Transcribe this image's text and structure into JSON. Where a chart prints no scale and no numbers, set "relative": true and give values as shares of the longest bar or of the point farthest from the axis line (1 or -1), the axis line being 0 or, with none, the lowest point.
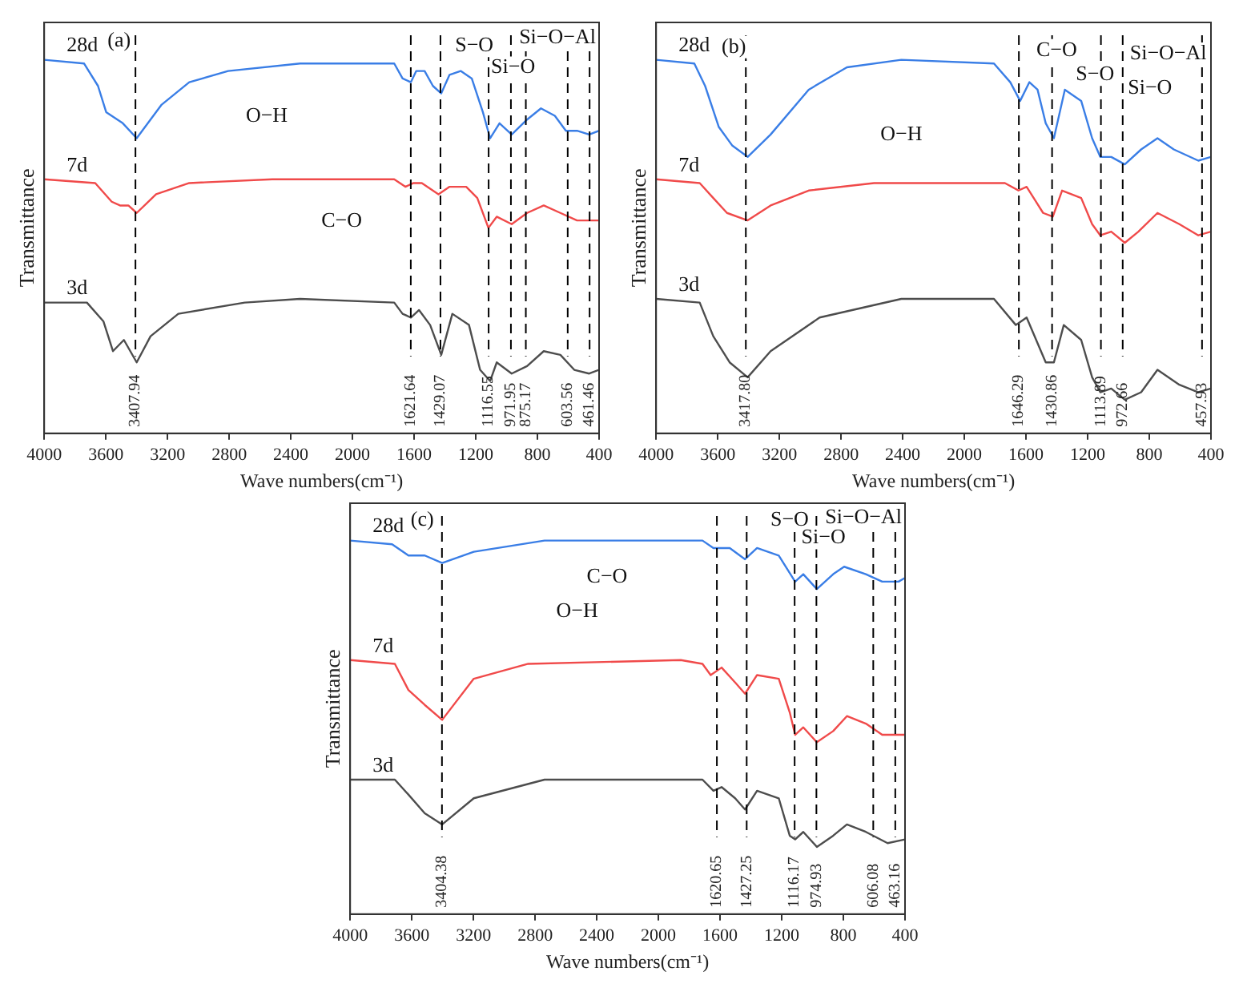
{
  "chart_data": [
    {
      "type": "line",
      "relative": true,
      "xlabel": "Wave numbers(cm⁻¹)",
      "ylabel": "Transmittance",
      "xlim": [
        4000,
        400
      ],
      "xticks": [
        4000,
        3600,
        3200,
        2800,
        2400,
        2000,
        1600,
        1200,
        800,
        400
      ],
      "series": [
        {
          "name": "28d",
          "color": "#3a7ee6",
          "x": [
            4000,
            3741,
            3651,
            3598,
            3490,
            3400,
            3238,
            3059,
            2807,
            2340,
            1729,
            1675,
            1621,
            1586,
            1532,
            1478,
            1424,
            1370,
            1298,
            1226,
            1154,
            1107,
            1046,
            967,
            867,
            777,
            687,
            615,
            543,
            464,
            400
          ],
          "values": [
            1.0,
            0.99,
            0.93,
            0.86,
            0.83,
            0.79,
            0.88,
            0.94,
            0.97,
            0.99,
            0.99,
            0.95,
            0.94,
            0.97,
            0.97,
            0.93,
            0.91,
            0.96,
            0.97,
            0.95,
            0.86,
            0.79,
            0.83,
            0.8,
            0.84,
            0.87,
            0.85,
            0.81,
            0.81,
            0.8,
            0.81
          ]
        },
        {
          "name": "7d",
          "color": "#f04a4a",
          "x": [
            4000,
            3669,
            3562,
            3508,
            3454,
            3400,
            3274,
            3059,
            2520,
            1729,
            1657,
            1604,
            1550,
            1442,
            1370,
            1262,
            1190,
            1118,
            1064,
            967,
            867,
            759,
            651,
            543,
            400
          ],
          "values": [
            0.68,
            0.67,
            0.62,
            0.61,
            0.61,
            0.59,
            0.64,
            0.67,
            0.68,
            0.68,
            0.66,
            0.67,
            0.67,
            0.64,
            0.66,
            0.66,
            0.63,
            0.55,
            0.58,
            0.56,
            0.59,
            0.61,
            0.59,
            0.57,
            0.57
          ]
        },
        {
          "name": "3d",
          "color": "#4d4d4d",
          "x": [
            4000,
            3723,
            3616,
            3554,
            3483,
            3400,
            3310,
            3130,
            2699,
            2340,
            1729,
            1675,
            1621,
            1568,
            1496,
            1424,
            1352,
            1244,
            1172,
            1107,
            1064,
            967,
            867,
            759,
            651,
            561,
            464,
            400
          ],
          "values": [
            0.35,
            0.35,
            0.3,
            0.22,
            0.25,
            0.19,
            0.26,
            0.32,
            0.35,
            0.36,
            0.35,
            0.32,
            0.31,
            0.33,
            0.29,
            0.21,
            0.32,
            0.29,
            0.17,
            0.14,
            0.19,
            0.16,
            0.18,
            0.22,
            0.21,
            0.17,
            0.16,
            0.17
          ]
        }
      ],
      "ref_lines": [
        {
          "axis": "x",
          "value": 3407.94,
          "label": "3407.94",
          "color": "#000000",
          "line_style": "dashed"
        },
        {
          "axis": "x",
          "value": 1621.64,
          "label": "1621.64",
          "color": "#000000",
          "line_style": "dashed"
        },
        {
          "axis": "x",
          "value": 1429.07,
          "label": "1429.07",
          "color": "#000000",
          "line_style": "dashed"
        },
        {
          "axis": "x",
          "value": 1116.55,
          "label": "1116.55",
          "color": "#000000",
          "line_style": "dashed"
        },
        {
          "axis": "x",
          "value": 971.95,
          "label": "971.95",
          "color": "#000000",
          "line_style": "dashed"
        },
        {
          "axis": "x",
          "value": 875.17,
          "label": "875.17",
          "color": "#000000",
          "line_style": "dashed"
        },
        {
          "axis": "x",
          "value": 603.56,
          "label": "603.56",
          "color": "#000000",
          "line_style": "dashed"
        },
        {
          "axis": "x",
          "value": 461.46,
          "label": "461.46",
          "color": "#000000",
          "line_style": "dashed"
        }
      ],
      "annotations": [
        "(a)",
        "O−H",
        "C−O",
        "S−O",
        "Si−O",
        "Si−O−Al"
      ]
    },
    {
      "type": "line",
      "relative": true,
      "xlabel": "Wave numbers(cm⁻¹)",
      "ylabel": "Transmittance",
      "xlim": [
        4000,
        400
      ],
      "xticks": [
        4000,
        3600,
        3200,
        2800,
        2400,
        2000,
        1600,
        1200,
        800,
        400
      ],
      "series": [
        {
          "name": "28d",
          "color": "#3a7ee6",
          "x": [
            4000,
            3752,
            3682,
            3593,
            3505,
            3406,
            3257,
            3010,
            2762,
            2409,
            1808,
            1702,
            1638,
            1578,
            1525,
            1472,
            1419,
            1348,
            1242,
            1171,
            1118,
            1047,
            959,
            853,
            747,
            641,
            482,
            400
          ],
          "values": [
            1.0,
            0.99,
            0.93,
            0.82,
            0.77,
            0.74,
            0.8,
            0.92,
            0.98,
            1.0,
            0.99,
            0.94,
            0.89,
            0.94,
            0.92,
            0.83,
            0.79,
            0.92,
            0.89,
            0.79,
            0.74,
            0.74,
            0.72,
            0.76,
            0.79,
            0.76,
            0.73,
            0.74
          ]
        },
        {
          "name": "7d",
          "color": "#f04a4a",
          "x": [
            4000,
            3717,
            3629,
            3540,
            3406,
            3257,
            3010,
            2586,
            1737,
            1649,
            1596,
            1489,
            1426,
            1366,
            1242,
            1171,
            1118,
            1047,
            959,
            871,
            747,
            605,
            482,
            400
          ],
          "values": [
            0.68,
            0.67,
            0.63,
            0.59,
            0.57,
            0.61,
            0.65,
            0.67,
            0.67,
            0.65,
            0.66,
            0.59,
            0.58,
            0.65,
            0.63,
            0.56,
            0.53,
            0.54,
            0.51,
            0.54,
            0.59,
            0.56,
            0.53,
            0.54
          ]
        },
        {
          "name": "3d",
          "color": "#4d4d4d",
          "x": [
            4000,
            3717,
            3629,
            3523,
            3406,
            3257,
            2939,
            2409,
            1808,
            1666,
            1596,
            1472,
            1419,
            1355,
            1242,
            1171,
            1118,
            1047,
            959,
            853,
            747,
            605,
            482,
            400
          ],
          "values": [
            0.36,
            0.35,
            0.26,
            0.19,
            0.15,
            0.22,
            0.31,
            0.36,
            0.36,
            0.29,
            0.31,
            0.19,
            0.19,
            0.29,
            0.25,
            0.15,
            0.11,
            0.12,
            0.09,
            0.11,
            0.17,
            0.13,
            0.11,
            0.12
          ]
        }
      ],
      "ref_lines": [
        {
          "axis": "x",
          "value": 3417.8,
          "label": "3417.80",
          "color": "#000000",
          "line_style": "dashed"
        },
        {
          "axis": "x",
          "value": 1646.29,
          "label": "1646.29",
          "color": "#000000",
          "line_style": "dashed"
        },
        {
          "axis": "x",
          "value": 1430.86,
          "label": "1430.86",
          "color": "#000000",
          "line_style": "dashed"
        },
        {
          "axis": "x",
          "value": 1113.89,
          "label": "1113.89",
          "color": "#000000",
          "line_style": "dashed"
        },
        {
          "axis": "x",
          "value": 972.66,
          "label": "972.66",
          "color": "#000000",
          "line_style": "dashed"
        },
        {
          "axis": "x",
          "value": 457.93,
          "label": "457.93",
          "color": "#000000",
          "line_style": "dashed"
        }
      ],
      "annotations": [
        "(b)",
        "O−H",
        "C−O",
        "S−O",
        "Si−O",
        "Si−O−Al"
      ]
    },
    {
      "type": "line",
      "relative": true,
      "xlabel": "Wave numbers(cm⁻¹)",
      "ylabel": "Transmittance",
      "xlim": [
        4000,
        400
      ],
      "xticks": [
        4000,
        3600,
        3200,
        2800,
        2400,
        2000,
        1600,
        1200,
        800,
        400
      ],
      "series": [
        {
          "name": "28d",
          "color": "#3a7ee6",
          "x": [
            4000,
            3728,
            3622,
            3516,
            3403,
            3198,
            2739,
            1714,
            1643,
            1537,
            1438,
            1360,
            1219,
            1113,
            1060,
            972,
            866,
            795,
            654,
            548,
            442,
            400
          ],
          "values": [
            1.0,
            0.99,
            0.96,
            0.96,
            0.94,
            0.97,
            1.0,
            1.0,
            0.98,
            0.98,
            0.95,
            0.98,
            0.96,
            0.89,
            0.91,
            0.87,
            0.91,
            0.93,
            0.91,
            0.89,
            0.89,
            0.9
          ]
        },
        {
          "name": "7d",
          "color": "#f04a4a",
          "x": [
            4000,
            3710,
            3622,
            3516,
            3403,
            3198,
            2845,
            1855,
            1714,
            1661,
            1590,
            1502,
            1438,
            1360,
            1219,
            1148,
            1113,
            1060,
            972,
            866,
            777,
            654,
            548,
            400
          ],
          "values": [
            0.68,
            0.67,
            0.6,
            0.56,
            0.52,
            0.63,
            0.67,
            0.68,
            0.67,
            0.64,
            0.66,
            0.62,
            0.59,
            0.64,
            0.63,
            0.54,
            0.48,
            0.5,
            0.46,
            0.49,
            0.53,
            0.51,
            0.48,
            0.48
          ]
        },
        {
          "name": "3d",
          "color": "#4d4d4d",
          "x": [
            4000,
            3710,
            3622,
            3516,
            3403,
            3198,
            2739,
            1714,
            1643,
            1590,
            1502,
            1438,
            1360,
            1219,
            1148,
            1113,
            1060,
            972,
            866,
            777,
            654,
            513,
            400
          ],
          "values": [
            0.36,
            0.36,
            0.32,
            0.27,
            0.24,
            0.31,
            0.36,
            0.36,
            0.33,
            0.34,
            0.31,
            0.28,
            0.33,
            0.31,
            0.21,
            0.2,
            0.22,
            0.18,
            0.21,
            0.24,
            0.22,
            0.19,
            0.2
          ]
        }
      ],
      "ref_lines": [
        {
          "axis": "x",
          "value": 3404.38,
          "label": "3404.38",
          "color": "#000000",
          "line_style": "dashed"
        },
        {
          "axis": "x",
          "value": 1620.65,
          "label": "1620.65",
          "color": "#000000",
          "line_style": "dashed"
        },
        {
          "axis": "x",
          "value": 1427.25,
          "label": "1427.25",
          "color": "#000000",
          "line_style": "dashed"
        },
        {
          "axis": "x",
          "value": 1116.17,
          "label": "1116.17",
          "color": "#000000",
          "line_style": "dashed"
        },
        {
          "axis": "x",
          "value": 974.93,
          "label": "974.93",
          "color": "#000000",
          "line_style": "dashed"
        },
        {
          "axis": "x",
          "value": 606.08,
          "label": "606.08",
          "color": "#000000",
          "line_style": "dashed"
        },
        {
          "axis": "x",
          "value": 463.16,
          "label": "463.16",
          "color": "#000000",
          "line_style": "dashed"
        }
      ],
      "annotations": [
        "(c)",
        "O−H",
        "C−O",
        "S−O",
        "Si−O",
        "Si−O−Al"
      ]
    }
  ]
}
